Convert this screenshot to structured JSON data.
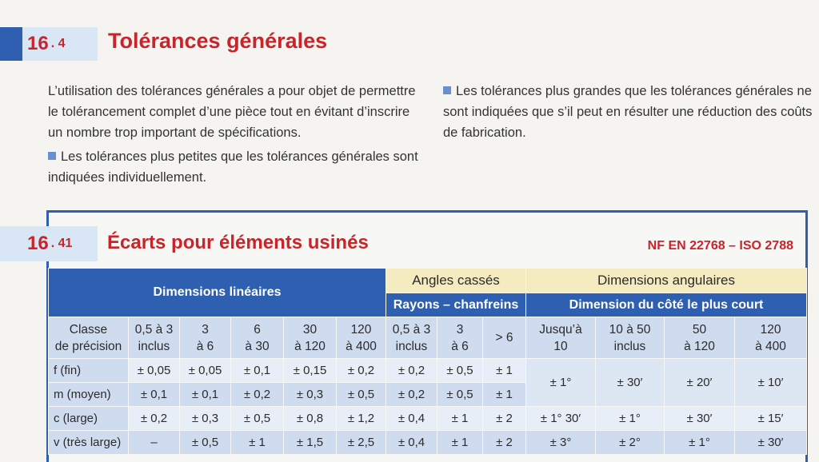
{
  "section": {
    "number": "16",
    "sub": "4",
    "title": "Tolérances générales"
  },
  "paragraphs": {
    "intro": "L’utilisation des tolérances générales a pour objet de permettre le tolérancement complet d’une pièce tout en évitant d’inscrire un nombre trop important de spécifications.",
    "smaller": "Les tolérances plus petites que les tolérances générales sont indiquées individuellement.",
    "larger": "Les tolérances plus grandes que les tolérances générales ne sont indiquées que s’il peut en résulter une réduction des coûts de fabrication."
  },
  "subsection": {
    "number": "16",
    "sub": "41",
    "title": "Écarts pour éléments usinés",
    "norm": "NF EN 22768 – ISO 2788"
  },
  "table": {
    "group_linear": "Dimensions linéaires",
    "group_angles": "Angles cassés",
    "group_angles_sub": "Rayons – chanfreins",
    "group_angular": "Dimensions angulaires",
    "group_angular_sub": "Dimension du côté le plus court",
    "col_headers": [
      [
        "Classe",
        "de précision"
      ],
      [
        "0,5 à 3",
        "inclus"
      ],
      [
        "3",
        "à 6"
      ],
      [
        "6",
        "à 30"
      ],
      [
        "30",
        "à 120"
      ],
      [
        "120",
        "à 400"
      ],
      [
        "0,5 à 3",
        "inclus"
      ],
      [
        "3",
        "à 6"
      ],
      [
        "> 6",
        ""
      ],
      [
        "Jusqu’à",
        "10"
      ],
      [
        "10 à 50",
        "inclus"
      ],
      [
        "50",
        "à 120"
      ],
      [
        "120",
        "à 400"
      ]
    ],
    "rows": [
      {
        "class": "f (fin)",
        "linear": [
          "± 0,05",
          "± 0,05",
          "± 0,1",
          "± 0,15",
          "± 0,2"
        ],
        "angles": [
          "± 0,2",
          "± 0,5",
          "± 1"
        ]
      },
      {
        "class": "m (moyen)",
        "linear": [
          "± 0,1",
          "± 0,1",
          "± 0,2",
          "± 0,3",
          "± 0,5"
        ],
        "angles": [
          "± 0,2",
          "± 0,5",
          "± 1"
        ]
      },
      {
        "class": "c (large)",
        "linear": [
          "± 0,2",
          "± 0,3",
          "± 0,5",
          "± 0,8",
          "± 1,2"
        ],
        "angles": [
          "± 0,4",
          "± 1",
          "± 2"
        ]
      },
      {
        "class": "v (très large)",
        "linear": [
          "–",
          "± 0,5",
          "± 1",
          "± 1,5",
          "± 2,5"
        ],
        "angles": [
          "± 0,4",
          "± 1",
          "± 2"
        ]
      }
    ],
    "angular_fm": [
      "± 1°",
      "± 30′",
      "± 20′",
      "± 10′"
    ],
    "angular_c": [
      "± 1° 30′",
      "± 1°",
      "± 30′",
      "± 15′"
    ],
    "angular_v": [
      "± 3°",
      "± 2°",
      "± 1°",
      "± 30′"
    ]
  },
  "colors": {
    "accent_red": "#c8242a",
    "accent_blue": "#2f5fb0",
    "header_light": "#cfdcef",
    "header_yellow": "#f4ecc0"
  }
}
